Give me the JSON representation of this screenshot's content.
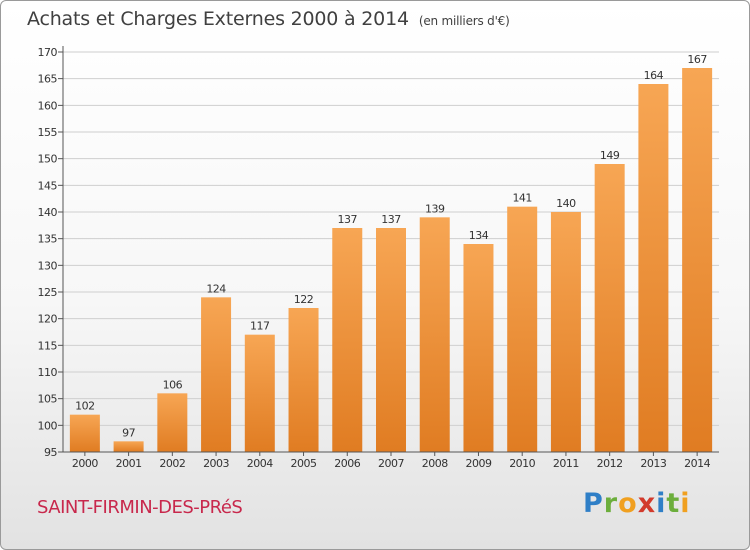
{
  "title": "Achats et Charges Externes 2000 à 2014",
  "subtitle": "(en milliers d'€)",
  "commune": "SAINT-FIRMIN-DES-PRéS",
  "brand": {
    "letters": [
      {
        "char": "P",
        "color": "#2f7fc7"
      },
      {
        "char": "r",
        "color": "#6cae3c"
      },
      {
        "char": "o",
        "color": "#f0a020"
      },
      {
        "char": "x",
        "color": "#d23a2c"
      },
      {
        "char": "i",
        "color": "#2f7fc7"
      },
      {
        "char": "t",
        "color": "#6cae3c"
      },
      {
        "char": "i",
        "color": "#f0a020"
      }
    ]
  },
  "chart_data": {
    "type": "bar",
    "categories": [
      "2000",
      "2001",
      "2002",
      "2003",
      "2004",
      "2005",
      "2006",
      "2007",
      "2008",
      "2009",
      "2010",
      "2011",
      "2012",
      "2013",
      "2014"
    ],
    "values": [
      102,
      97,
      106,
      124,
      117,
      122,
      137,
      137,
      139,
      134,
      141,
      140,
      149,
      164,
      167
    ],
    "ylim": [
      95,
      170
    ],
    "yticks": [
      95,
      100,
      105,
      110,
      115,
      120,
      125,
      130,
      135,
      140,
      145,
      150,
      155,
      160,
      165,
      170
    ],
    "grid": true,
    "bar_color_light": "#f7a654",
    "bar_color_dark": "#e07c22"
  }
}
